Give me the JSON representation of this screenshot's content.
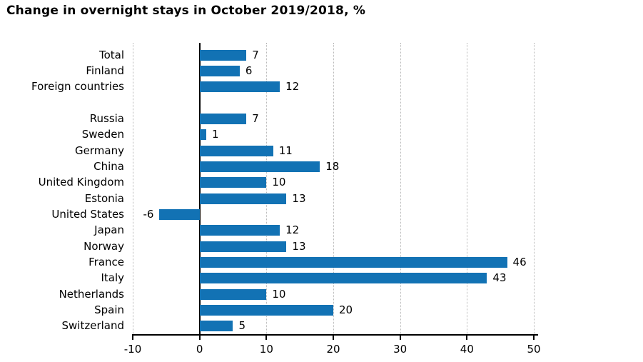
{
  "title": "Change in overnight stays in October 2019/2018, %",
  "chart_data": {
    "type": "bar",
    "orientation": "horizontal",
    "title": "Change in overnight stays in October 2019/2018, %",
    "categories": [
      "Total",
      "Finland",
      "Foreign countries",
      "Russia",
      "Sweden",
      "Germany",
      "China",
      "United Kingdom",
      "Estonia",
      "United States",
      "Japan",
      "Norway",
      "France",
      "Italy",
      "Netherlands",
      "Spain",
      "Switzerland"
    ],
    "values": [
      7,
      6,
      12,
      7,
      1,
      11,
      18,
      10,
      13,
      -6,
      12,
      13,
      46,
      43,
      10,
      20,
      5
    ],
    "spacer_after_index": 2,
    "xlabel": "",
    "ylabel": "",
    "xlim": [
      -10,
      50
    ],
    "xticks": [
      -10,
      0,
      10,
      20,
      30,
      40,
      50
    ],
    "grid": "vertical-dotted",
    "legend": "none",
    "value_labels": true,
    "bar_color": "#1272b4",
    "grid_color": "#b9b9b9",
    "axis_color": "#000000",
    "text_color": "#000000"
  }
}
